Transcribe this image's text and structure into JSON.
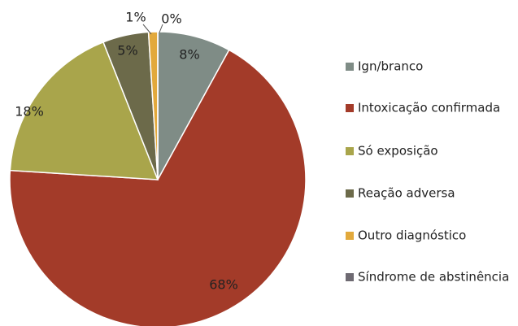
{
  "chart_data": {
    "type": "pie",
    "categories": [
      "Ign/branco",
      "Intoxicação confirmada",
      "Só exposição",
      "Reação adversa",
      "Outro diagnóstico",
      "Síndrome de abstinência"
    ],
    "values": [
      8,
      68,
      18,
      5,
      1,
      0
    ],
    "value_labels": [
      "8%",
      "68%",
      "18%",
      "5%",
      "1%",
      "0%"
    ],
    "colors": [
      "#7f8c86",
      "#a33b29",
      "#a9a54b",
      "#6c6a4a",
      "#e2a93c",
      "#6e6a72"
    ],
    "legend": "right"
  }
}
